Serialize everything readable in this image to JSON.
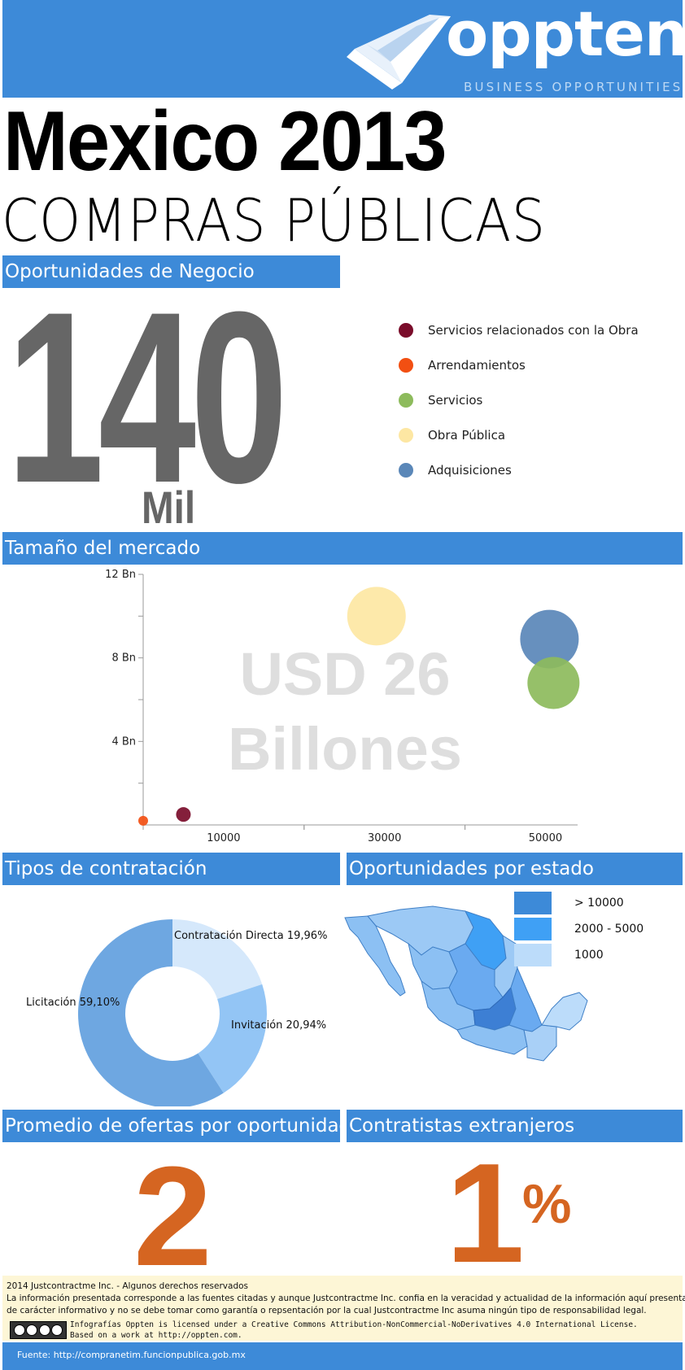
{
  "header": {
    "logo_word": "oppten",
    "tagline": "BUSINESS OPPORTUNITIES",
    "logo_icon": "check-envelope-icon"
  },
  "title": {
    "main": "Mexico  2013",
    "sub": "COMPRAS PÚBLICAS"
  },
  "sections": {
    "oportunidades": "Oportunidades de Negocio",
    "tamano": "Tamaño del mercado",
    "tipos": "Tipos de contratación",
    "estado": "Oportunidades por estado",
    "promedio": "Promedio de ofertas por oportunidad",
    "extranjeros": "Contratistas extranjeros"
  },
  "opportunities": {
    "number": "140",
    "unit": "Mil"
  },
  "legend": [
    {
      "label": "Servicios relacionados con la Obra",
      "color": "#7a0c2a"
    },
    {
      "label": "Arrendamientos",
      "color": "#f24f12"
    },
    {
      "label": "Servicios",
      "color": "#8dbb5c"
    },
    {
      "label": "Obra Pública",
      "color": "#fde7a3"
    },
    {
      "label": "Adquisiciones",
      "color": "#5a87b8"
    }
  ],
  "chart_data": {
    "type": "scatter",
    "watermark": [
      "USD 26",
      "Billones"
    ],
    "x_ticks": [
      "10000",
      "30000",
      "50000"
    ],
    "y_ticks": [
      "4 Bn",
      "8 Bn",
      "12 Bn"
    ],
    "xlim": [
      0,
      54000
    ],
    "ylim": [
      0,
      12
    ],
    "points": [
      {
        "name": "Arrendamientos",
        "x": 0,
        "y": 0.2,
        "r": 6,
        "color": "#f24f12"
      },
      {
        "name": "Servicios relacionados con la Obra",
        "x": 5000,
        "y": 0.5,
        "r": 9,
        "color": "#7a0c2a"
      },
      {
        "name": "Obra Pública",
        "x": 29000,
        "y": 10.0,
        "r": 36,
        "color": "#fde7a3"
      },
      {
        "name": "Adquisiciones",
        "x": 50500,
        "y": 8.9,
        "r": 36,
        "color": "#5a87b8"
      },
      {
        "name": "Servicios",
        "x": 51000,
        "y": 6.8,
        "r": 32,
        "color": "#8dbb5c"
      }
    ]
  },
  "contract_types": [
    {
      "label": "Contratación Directa 19,96%",
      "value": 19.96,
      "color": "#d5e8fb"
    },
    {
      "label": "Invitación 20,94%",
      "value": 20.94,
      "color": "#93c5f5"
    },
    {
      "label": "Licitación 59,10%",
      "value": 59.1,
      "color": "#6ea7e1"
    }
  ],
  "map_legend": [
    {
      "label": "> 10000",
      "color": "#3d8ad8"
    },
    {
      "label": "2000 - 5000",
      "color": "#3fa0f5"
    },
    {
      "label": "1000",
      "color": "#bcdcfa"
    }
  ],
  "promedio": {
    "value": "2"
  },
  "extranjeros": {
    "value": "1",
    "unit": "%"
  },
  "footer": {
    "line1": "2014 Justcontractme Inc. - Algunos derechos reservados",
    "line2": "La información presentada corresponde a las fuentes citadas y aunque Justcontractme Inc. confia en la veracidad y actualidad de la información aquí presentada es",
    "line3": "de carácter informativo y no se debe tomar como garantía o repsentación por la cual Justcontractme Inc asuma ningún tipo de responsabilidad legal.",
    "cc1": "Infografías Oppten is licensed under a Creative Commons Attribution-NonCommercial-NoDerivatives 4.0 International License.",
    "cc2": "Based on a work at http://oppten.com.",
    "fuente": "Fuente:  http://compranetim.funcionpublica.gob.mx"
  }
}
